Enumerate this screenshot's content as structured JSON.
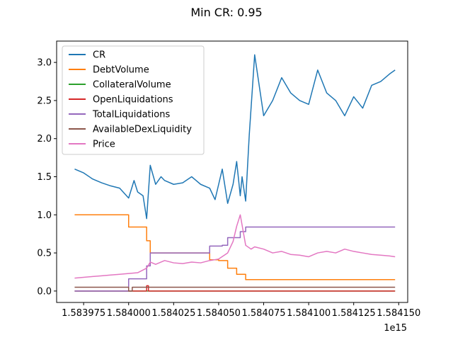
{
  "chart_data": {
    "type": "line",
    "title": "Min CR: 0.95",
    "xlabel": "",
    "ylabel": "",
    "x_offset_label": "1e15",
    "xlim": [
      1.58396,
      1.584155
    ],
    "ylim": [
      -0.15,
      3.28
    ],
    "x_ticks": [
      1.583975,
      1.584,
      1.584025,
      1.58405,
      1.584075,
      1.5841,
      1.584125,
      1.58415
    ],
    "x_tick_labels": [
      "1.583975",
      "1.584000",
      "1.584025",
      "1.584050",
      "1.584075",
      "1.584100",
      "1.584125",
      "1.584150"
    ],
    "y_ticks": [
      0.0,
      0.5,
      1.0,
      1.5,
      2.0,
      2.5,
      3.0
    ],
    "y_tick_labels": [
      "0.0",
      "0.5",
      "1.0",
      "1.5",
      "2.0",
      "2.5",
      "3.0"
    ],
    "legend_position": "top-left",
    "grid": false,
    "series": [
      {
        "name": "CR",
        "color": "#1f77b4",
        "x": [
          1.58397,
          1.583975,
          1.58398,
          1.583985,
          1.58399,
          1.583995,
          1.584,
          1.584003,
          1.584005,
          1.584008,
          1.58401,
          1.584012,
          1.584015,
          1.584018,
          1.58402,
          1.584025,
          1.58403,
          1.584035,
          1.58404,
          1.584045,
          1.584048,
          1.58405,
          1.584052,
          1.584055,
          1.584058,
          1.58406,
          1.584062,
          1.584063,
          1.584065,
          1.584067,
          1.58407,
          1.584075,
          1.58408,
          1.584085,
          1.58409,
          1.584095,
          1.5841,
          1.584105,
          1.58411,
          1.584115,
          1.58412,
          1.584125,
          1.58413,
          1.584135,
          1.58414,
          1.584145,
          1.584148
        ],
        "y": [
          1.6,
          1.55,
          1.47,
          1.42,
          1.38,
          1.35,
          1.22,
          1.45,
          1.3,
          1.25,
          0.95,
          1.65,
          1.4,
          1.5,
          1.45,
          1.4,
          1.42,
          1.5,
          1.4,
          1.35,
          1.2,
          1.4,
          1.6,
          1.15,
          1.4,
          1.7,
          1.25,
          1.5,
          1.18,
          2.05,
          3.1,
          2.3,
          2.5,
          2.8,
          2.6,
          2.5,
          2.45,
          2.9,
          2.6,
          2.5,
          2.3,
          2.55,
          2.4,
          2.7,
          2.75,
          2.85,
          2.9
        ]
      },
      {
        "name": "DebtVolume",
        "color": "#ff7f0e",
        "x": [
          1.58397,
          1.584,
          1.584,
          1.58401,
          1.58401,
          1.584012,
          1.584012,
          1.584045,
          1.584045,
          1.58405,
          1.58405,
          1.584055,
          1.584055,
          1.58406,
          1.58406,
          1.584065,
          1.584065,
          1.584148
        ],
        "y": [
          1.0,
          1.0,
          0.84,
          0.84,
          0.66,
          0.66,
          0.5,
          0.5,
          0.41,
          0.41,
          0.4,
          0.4,
          0.3,
          0.3,
          0.22,
          0.22,
          0.15,
          0.15
        ]
      },
      {
        "name": "CollateralVolume",
        "color": "#2ca02c",
        "x": [
          1.58397,
          1.584148
        ],
        "y": [
          0.0,
          0.0
        ]
      },
      {
        "name": "OpenLiquidations",
        "color": "#d62728",
        "x": [
          1.58397,
          1.58401,
          1.58401,
          1.584011,
          1.584011,
          1.584148
        ],
        "y": [
          0.0,
          0.0,
          0.07,
          0.07,
          0.0,
          0.0
        ]
      },
      {
        "name": "TotalLiquidations",
        "color": "#9467bd",
        "x": [
          1.58397,
          1.584,
          1.584,
          1.58401,
          1.58401,
          1.584012,
          1.584012,
          1.584045,
          1.584045,
          1.584052,
          1.584052,
          1.584055,
          1.584055,
          1.584062,
          1.584062,
          1.584065,
          1.584065,
          1.584148
        ],
        "y": [
          0.0,
          0.0,
          0.16,
          0.16,
          0.33,
          0.33,
          0.5,
          0.5,
          0.59,
          0.59,
          0.6,
          0.6,
          0.7,
          0.7,
          0.78,
          0.78,
          0.84,
          0.84
        ]
      },
      {
        "name": "AvailableDexLiquidity",
        "color": "#8c564b",
        "x": [
          1.58397,
          1.584,
          1.584,
          1.584002,
          1.584002,
          1.584148
        ],
        "y": [
          0.05,
          0.05,
          0.0,
          0.0,
          0.05,
          0.05
        ]
      },
      {
        "name": "Price",
        "color": "#e377c2",
        "x": [
          1.58397,
          1.583975,
          1.58398,
          1.583985,
          1.58399,
          1.583995,
          1.584,
          1.584005,
          1.58401,
          1.584012,
          1.584015,
          1.58402,
          1.584025,
          1.58403,
          1.584035,
          1.58404,
          1.584045,
          1.58405,
          1.584055,
          1.584058,
          1.58406,
          1.584062,
          1.584065,
          1.584068,
          1.58407,
          1.584075,
          1.58408,
          1.584085,
          1.58409,
          1.584095,
          1.5841,
          1.584105,
          1.58411,
          1.584115,
          1.58412,
          1.584125,
          1.58413,
          1.584135,
          1.58414,
          1.584145,
          1.584148
        ],
        "y": [
          0.17,
          0.18,
          0.19,
          0.2,
          0.21,
          0.22,
          0.23,
          0.24,
          0.3,
          0.38,
          0.35,
          0.4,
          0.37,
          0.36,
          0.38,
          0.37,
          0.4,
          0.42,
          0.5,
          0.65,
          0.85,
          1.0,
          0.6,
          0.55,
          0.58,
          0.55,
          0.5,
          0.52,
          0.48,
          0.47,
          0.45,
          0.5,
          0.52,
          0.5,
          0.55,
          0.52,
          0.5,
          0.48,
          0.47,
          0.46,
          0.45
        ]
      }
    ]
  }
}
